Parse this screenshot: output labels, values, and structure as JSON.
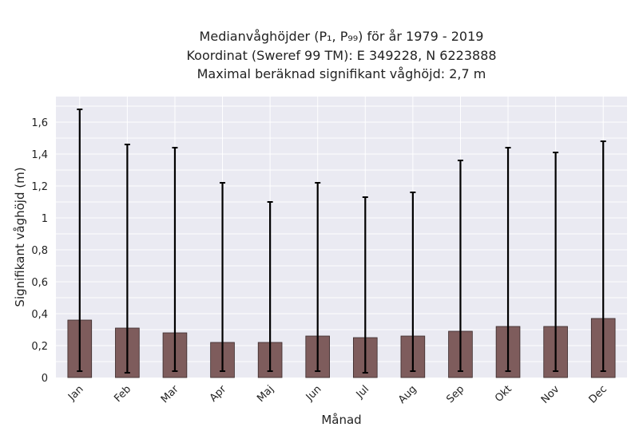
{
  "chart_data": {
    "type": "bar",
    "title_lines": [
      "Medianvåghöjder (P₁, P₉₉) för år 1979 - 2019",
      "Koordinat (Sweref 99 TM): E 349228, N 6223888",
      "Maximal beräknad signifikant våghöjd: 2,7 m"
    ],
    "xlabel": "Månad",
    "ylabel": "Signifikant våghöjd (m)",
    "categories": [
      "Jan",
      "Feb",
      "Mar",
      "Apr",
      "Maj",
      "Jun",
      "Jul",
      "Aug",
      "Sep",
      "Okt",
      "Nov",
      "Dec"
    ],
    "values": [
      0.36,
      0.31,
      0.28,
      0.22,
      0.22,
      0.26,
      0.25,
      0.26,
      0.29,
      0.32,
      0.32,
      0.37
    ],
    "p1": [
      0.04,
      0.03,
      0.04,
      0.04,
      0.04,
      0.04,
      0.03,
      0.04,
      0.04,
      0.04,
      0.04,
      0.04
    ],
    "p99": [
      1.68,
      1.46,
      1.44,
      1.22,
      1.1,
      1.22,
      1.13,
      1.16,
      1.36,
      1.44,
      1.41,
      1.48
    ],
    "ylim": [
      0,
      1.76
    ],
    "yticks": [
      0,
      0.2,
      0.4,
      0.6,
      0.8,
      1,
      1.2,
      1.4,
      1.6
    ],
    "ytick_labels": [
      "0",
      "0,2",
      "0,4",
      "0,6",
      "0,8",
      "1",
      "1,2",
      "1,4",
      "1,6"
    ],
    "grid": true,
    "colors": {
      "plot_background": "#eaeaf2",
      "grid": "#ffffff",
      "bar_fill": "#7e5c5c",
      "bar_edge": "#3a2a2a",
      "error_bar": "#000000"
    }
  }
}
